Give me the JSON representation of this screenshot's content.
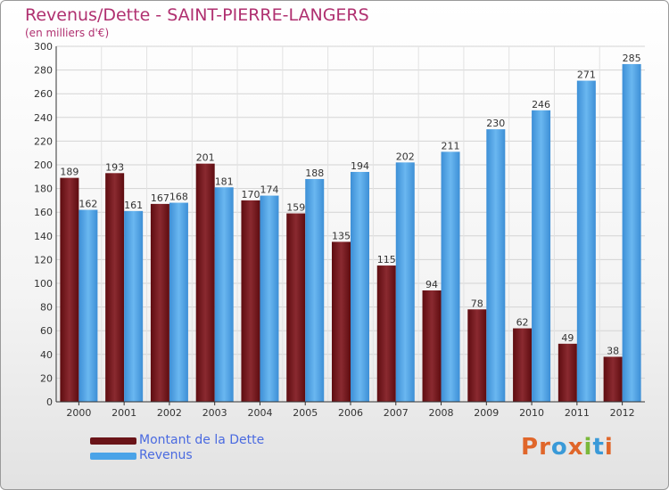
{
  "chart_data": {
    "type": "bar",
    "title": "Revenus/Dette - SAINT-PIERRE-LANGERS",
    "subtitle": "(en milliers d'€)",
    "categories": [
      "2000",
      "2001",
      "2002",
      "2003",
      "2004",
      "2005",
      "2006",
      "2007",
      "2008",
      "2009",
      "2010",
      "2011",
      "2012"
    ],
    "series": [
      {
        "name": "Montant de la Dette",
        "color": "#7a1a1e",
        "values": [
          189,
          193,
          167,
          201,
          170,
          159,
          135,
          115,
          94,
          78,
          62,
          49,
          38
        ]
      },
      {
        "name": "Revenus",
        "color": "#4aa3e8",
        "values": [
          162,
          161,
          168,
          181,
          174,
          188,
          194,
          202,
          211,
          230,
          246,
          271,
          285
        ]
      }
    ],
    "ylim": [
      0,
      300
    ],
    "yticks": [
      0,
      20,
      40,
      60,
      80,
      100,
      120,
      140,
      160,
      180,
      200,
      220,
      240,
      260,
      280,
      300
    ],
    "grid": true,
    "legend_position": "bottom-left"
  },
  "logo": {
    "letters": [
      {
        "char": "P",
        "color": "#e0662a"
      },
      {
        "char": "r",
        "color": "#e0662a"
      },
      {
        "char": "o",
        "color": "#3a9ad8"
      },
      {
        "char": "x",
        "color": "#e0662a"
      },
      {
        "char": "i",
        "color": "#7ab83a"
      },
      {
        "char": "t",
        "color": "#3a9ad8"
      },
      {
        "char": "i",
        "color": "#e0662a"
      }
    ]
  }
}
